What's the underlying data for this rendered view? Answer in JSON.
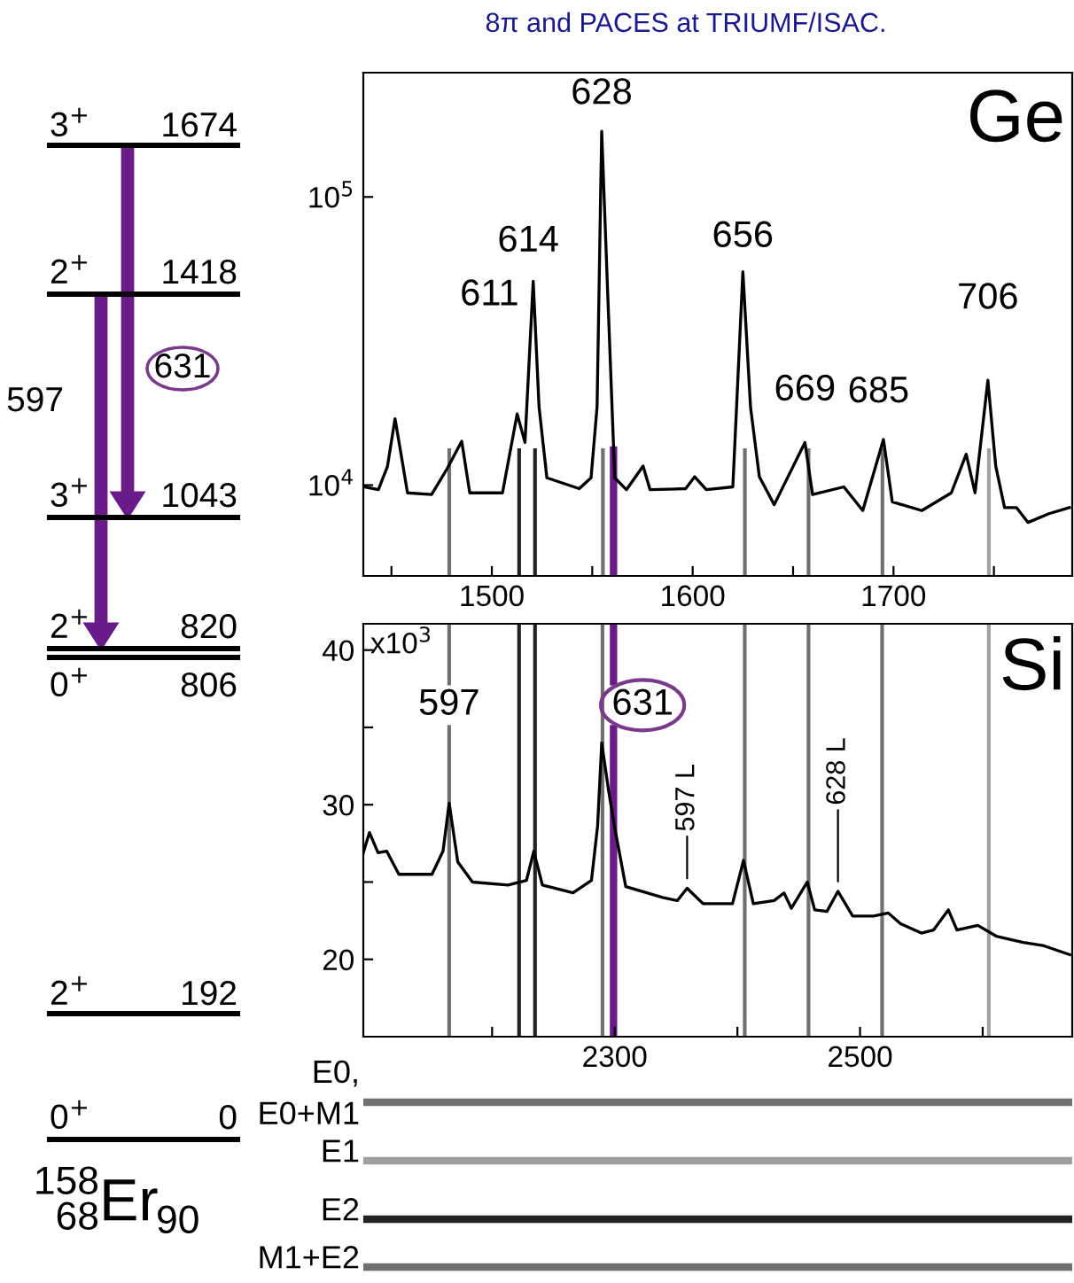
{
  "chart_data": [
    {
      "type": "line",
      "title": "8π and PACES at TRIUMF/ISAC.",
      "x": [
        1436.5,
        1443.5,
        1448,
        1451.8,
        1455.3,
        1458,
        1470,
        1477.6,
        1485,
        1489,
        1505.3,
        1512.6,
        1516.5,
        1520.6,
        1523.5,
        1527.4,
        1543.5,
        1549.4,
        1552.4,
        1554.7,
        1557.6,
        1561.2,
        1567,
        1575.3,
        1578.8,
        1596.5,
        1601,
        1606.8,
        1620,
        1625,
        1628.8,
        1633.2,
        1640.6,
        1655.9,
        1659.7,
        1675.3,
        1684.7,
        1695,
        1699.4,
        1714.1,
        1728.8,
        1736.2,
        1740.6,
        1747,
        1750.9,
        1755.3,
        1761.2,
        1767,
        1777.4,
        1787.6
      ],
      "series": [
        {
          "color": "#000000",
          "values": [
            9860,
            9640,
            11600,
            17000,
            12200,
            9400,
            9270,
            11360,
            14200,
            9400,
            9400,
            17660,
            14060,
            51000,
            18700,
            10600,
            9720,
            10600,
            18700,
            169000,
            48200,
            10600,
            9640,
            11650,
            9640,
            9720,
            10690,
            9640,
            9860,
            55000,
            18700,
            10690,
            8550,
            14060,
            9270,
            9860,
            8160,
            14400,
            8750,
            8160,
            9400,
            12800,
            9400,
            23100,
            11650,
            8360,
            8360,
            7420,
            7960,
            8360
          ]
        }
      ],
      "log": "y",
      "xlim": [
        1436,
        1789
      ],
      "ylim": [
        4840,
        270000
      ],
      "xticks": [
        {
          "value": 1450,
          "label": null
        },
        1500,
        {
          "value": 1550,
          "label": null
        },
        1600,
        {
          "value": 1650,
          "label": null
        },
        1700,
        {
          "value": 1750,
          "label": null
        }
      ],
      "yticks": [
        {
          "value": 10000,
          "label": "10$^{4}$"
        },
        {
          "value": 100000,
          "label": "10$^{5}$"
        }
      ],
      "line_style": "solid",
      "marker": "none",
      "grid": false,
      "legend": false,
      "ref_lines": [
        {
          "axis": "x",
          "value": 1478.8,
          "color": "#707070"
        },
        {
          "axis": "x",
          "value": 1513.6,
          "color": "#222222"
        },
        {
          "axis": "x",
          "value": 1521.5,
          "color": "#222222"
        },
        {
          "axis": "x",
          "value": 1555.3,
          "color": "#707070"
        },
        {
          "axis": "x",
          "value": 1560.6,
          "color": "#6a1b8a"
        },
        {
          "axis": "x",
          "value": 1626,
          "color": "#707070"
        },
        {
          "axis": "x",
          "value": 1657.7,
          "color": "#707070"
        },
        {
          "axis": "x",
          "value": 1694.5,
          "color": "#707070"
        },
        {
          "axis": "x",
          "value": 1747.5,
          "color": "#a0a0a0"
        }
      ],
      "annotations": [
        "Ge",
        {
          "text": "628",
          "x": 1554.7,
          "y": 169000
        },
        {
          "text": "614",
          "x": 1520.6,
          "y": 51000
        },
        "611",
        {
          "text": "656",
          "x": 1625,
          "y": 55000
        },
        {
          "text": "669",
          "x": 1655.9,
          "y": 14060
        },
        {
          "text": "685",
          "x": 1695,
          "y": 14400
        },
        {
          "text": "706",
          "x": 1747,
          "y": 23100
        }
      ]
    },
    {
      "type": "line",
      "x": [
        2095,
        2100,
        2107,
        2114,
        2124,
        2151,
        2160,
        2165,
        2172,
        2184,
        2213,
        2228,
        2234,
        2241,
        2266,
        2281,
        2286,
        2289.4,
        2295,
        2300,
        2309,
        2339,
        2351,
        2359,
        2372,
        2396,
        2405,
        2413,
        2430,
        2438,
        2444,
        2457,
        2463,
        2473,
        2482,
        2494,
        2511,
        2523,
        2533,
        2550,
        2560,
        2572,
        2579,
        2596,
        2611,
        2633,
        2649,
        2671
      ],
      "series": [
        {
          "color": "#000000",
          "values": [
            26.9,
            28.2,
            26.9,
            27.0,
            25.5,
            25.5,
            27.0,
            30.1,
            26.3,
            25.0,
            24.8,
            25.1,
            27.0,
            24.8,
            24.3,
            25.1,
            28.6,
            34.0,
            30.9,
            28.5,
            24.7,
            24.0,
            23.8,
            24.6,
            23.6,
            23.6,
            26.4,
            23.6,
            23.8,
            24.3,
            23.3,
            25.0,
            23.2,
            23.1,
            24.4,
            22.8,
            22.8,
            23.0,
            22.3,
            21.7,
            21.9,
            23.2,
            21.9,
            22.2,
            21.5,
            21.1,
            20.9,
            20.3
          ]
        }
      ],
      "xlim": [
        2095,
        2673
      ],
      "ylim": [
        15,
        41.7
      ],
      "xticks": [
        {
          "value": 2200,
          "label": null
        },
        2300,
        {
          "value": 2400,
          "label": null
        },
        2500,
        {
          "value": 2600,
          "label": null
        }
      ],
      "yticks": [
        20,
        {
          "value": 25,
          "label": null
        },
        30,
        {
          "value": 35,
          "label": null
        },
        40
      ],
      "line_style": "solid",
      "marker": "none",
      "grid": false,
      "legend": false,
      "ref_lines": [
        {
          "axis": "x",
          "value": 2165,
          "color": "#707070"
        },
        {
          "axis": "x",
          "value": 2222,
          "color": "#222222"
        },
        {
          "axis": "x",
          "value": 2235,
          "color": "#222222"
        },
        {
          "axis": "x",
          "value": 2290,
          "color": "#707070"
        },
        {
          "axis": "x",
          "value": 2299,
          "color": "#6a1b8a"
        },
        {
          "axis": "x",
          "value": 2406,
          "color": "#707070"
        },
        {
          "axis": "x",
          "value": 2458,
          "color": "#707070"
        },
        {
          "axis": "x",
          "value": 2518,
          "color": "#707070"
        },
        {
          "axis": "x",
          "value": 2605,
          "color": "#a0a0a0"
        }
      ],
      "annotations": [
        "Si",
        "x10$^{3}$",
        "597",
        "631",
        {
          "text": "597 L",
          "x": 2359,
          "y": 24.6
        },
        {
          "text": "628 L",
          "x": 2482,
          "y": 24.4
        }
      ]
    },
    {
      "type": "other",
      "annotations": [
        "E0,\nE0+M1",
        "E1",
        "E2",
        "M1+E2"
      ]
    },
    {
      "type": "other",
      "annotations": [
        "3$^{+}$",
        "1674",
        "2$^{+}$",
        "1418",
        "631",
        "597",
        "3$^{+}$",
        "1043",
        "2$^{+}$",
        "820",
        "0$^{+}$",
        "806",
        "2$^{+}$",
        "192",
        "0$^{+}$",
        "0",
        "158",
        "68",
        "Er",
        "90"
      ]
    }
  ]
}
